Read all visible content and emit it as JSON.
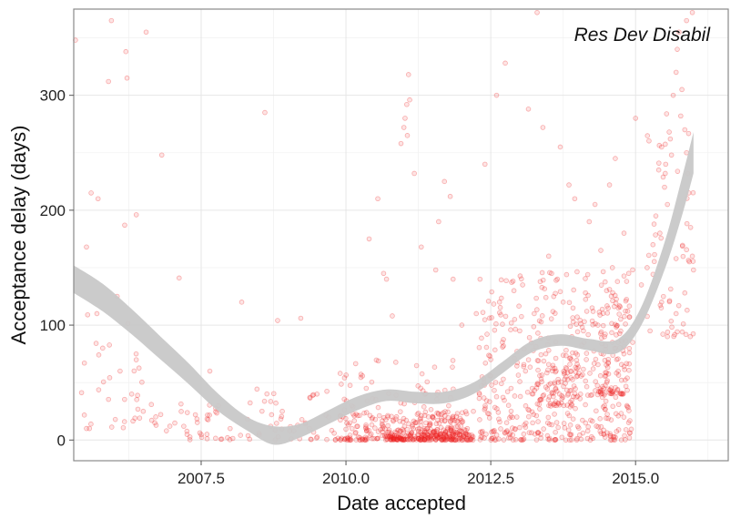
{
  "chart_data": {
    "type": "scatter",
    "title": "Res Dev Disabil",
    "xlabel": "Date accepted",
    "ylabel": "Acceptance delay (days)",
    "xlim": [
      2005.3,
      2016.6
    ],
    "ylim": [
      -18,
      375
    ],
    "x_ticks": [
      2007.5,
      2010.0,
      2012.5,
      2015.0
    ],
    "x_tick_labels": [
      "2007.5",
      "2010.0",
      "2012.5",
      "2015.0"
    ],
    "y_ticks": [
      0,
      100,
      200,
      300
    ],
    "y_tick_labels": [
      "0",
      "100",
      "200",
      "300"
    ],
    "grid": true,
    "point_color": "#ee2222",
    "band_color": "#c8c8c8",
    "points": [
      [
        2005.33,
        348
      ],
      [
        2005.6,
        215
      ],
      [
        2005.72,
        210
      ],
      [
        2005.52,
        168
      ],
      [
        2005.9,
        312
      ],
      [
        2005.95,
        365
      ],
      [
        2006.2,
        338
      ],
      [
        2006.22,
        315
      ],
      [
        2006.55,
        355
      ],
      [
        2006.38,
        196
      ],
      [
        2006.18,
        187
      ],
      [
        2006.82,
        248
      ],
      [
        2007.12,
        141
      ],
      [
        2007.65,
        60
      ],
      [
        2008.6,
        285
      ],
      [
        2008.82,
        104
      ],
      [
        2009.22,
        106
      ],
      [
        2008.2,
        120
      ],
      [
        2006.05,
        125
      ],
      [
        2005.7,
        110
      ],
      [
        2005.8,
        80
      ],
      [
        2006.1,
        60
      ],
      [
        2006.3,
        40
      ],
      [
        2006.5,
        25
      ],
      [
        2006.7,
        15
      ],
      [
        2006.9,
        8
      ],
      [
        2007.2,
        12
      ],
      [
        2007.4,
        22
      ],
      [
        2007.6,
        5
      ],
      [
        2007.8,
        30
      ],
      [
        2008.0,
        10
      ],
      [
        2008.3,
        18
      ],
      [
        2008.5,
        6
      ],
      [
        2008.7,
        12
      ],
      [
        2008.9,
        25
      ],
      [
        2009.1,
        8
      ],
      [
        2009.3,
        14
      ],
      [
        2009.5,
        40
      ],
      [
        2009.7,
        20
      ],
      [
        2009.9,
        58
      ],
      [
        2010.1,
        30
      ],
      [
        2010.2,
        12
      ],
      [
        2010.35,
        45
      ],
      [
        2010.4,
        175
      ],
      [
        2010.55,
        210
      ],
      [
        2010.65,
        145
      ],
      [
        2010.7,
        140
      ],
      [
        2010.8,
        108
      ],
      [
        2010.95,
        258
      ],
      [
        2011.0,
        272
      ],
      [
        2011.02,
        280
      ],
      [
        2011.05,
        292
      ],
      [
        2011.08,
        318
      ],
      [
        2011.1,
        296
      ],
      [
        2011.06,
        265
      ],
      [
        2011.18,
        232
      ],
      [
        2011.3,
        168
      ],
      [
        2011.55,
        148
      ],
      [
        2011.6,
        190
      ],
      [
        2011.7,
        225
      ],
      [
        2011.8,
        212
      ],
      [
        2011.85,
        140
      ],
      [
        2012.0,
        100
      ],
      [
        2012.25,
        110
      ],
      [
        2012.4,
        240
      ],
      [
        2012.6,
        300
      ],
      [
        2012.75,
        328
      ],
      [
        2012.9,
        130
      ],
      [
        2013.15,
        288
      ],
      [
        2013.3,
        372
      ],
      [
        2013.4,
        272
      ],
      [
        2013.55,
        145
      ],
      [
        2013.7,
        255
      ],
      [
        2013.85,
        222
      ],
      [
        2013.95,
        210
      ],
      [
        2014.2,
        190
      ],
      [
        2014.3,
        205
      ],
      [
        2014.4,
        165
      ],
      [
        2014.55,
        222
      ],
      [
        2014.65,
        245
      ],
      [
        2014.8,
        180
      ],
      [
        2015.0,
        280
      ],
      [
        2015.1,
        135
      ],
      [
        2015.2,
        150
      ],
      [
        2015.3,
        170
      ],
      [
        2015.35,
        195
      ],
      [
        2015.4,
        235
      ],
      [
        2015.45,
        255
      ],
      [
        2015.5,
        220
      ],
      [
        2015.55,
        205
      ],
      [
        2015.6,
        262
      ],
      [
        2015.65,
        300
      ],
      [
        2015.7,
        320
      ],
      [
        2015.72,
        340
      ],
      [
        2015.75,
        355
      ],
      [
        2015.8,
        305
      ],
      [
        2015.85,
        270
      ],
      [
        2015.88,
        250
      ],
      [
        2015.9,
        232
      ],
      [
        2015.92,
        215
      ],
      [
        2015.95,
        185
      ],
      [
        2015.98,
        160
      ],
      [
        2016.0,
        148
      ],
      [
        2015.25,
        95
      ],
      [
        2015.45,
        120
      ],
      [
        2015.55,
        90
      ],
      [
        2015.7,
        110
      ],
      [
        2015.85,
        128
      ],
      [
        2015.98,
        372
      ],
      [
        2015.88,
        365
      ],
      [
        2015.78,
        282
      ],
      [
        2015.62,
        248
      ],
      [
        2015.52,
        240
      ],
      [
        2015.42,
        180
      ],
      [
        2012.2,
        25
      ],
      [
        2012.35,
        55
      ],
      [
        2012.5,
        70
      ],
      [
        2012.7,
        85
      ],
      [
        2012.85,
        45
      ],
      [
        2013.0,
        95
      ],
      [
        2013.1,
        60
      ],
      [
        2013.25,
        110
      ],
      [
        2013.45,
        75
      ],
      [
        2013.6,
        50
      ],
      [
        2013.75,
        120
      ],
      [
        2013.9,
        90
      ],
      [
        2014.05,
        40
      ],
      [
        2014.15,
        70
      ],
      [
        2014.35,
        100
      ],
      [
        2014.5,
        130
      ],
      [
        2014.7,
        60
      ],
      [
        2014.85,
        30
      ],
      [
        2014.95,
        85
      ],
      [
        2013.35,
        35
      ],
      [
        2013.65,
        140
      ],
      [
        2014.25,
        115
      ],
      [
        2014.6,
        150
      ],
      [
        2012.95,
        20
      ],
      [
        2013.8,
        55
      ],
      [
        2014.45,
        45
      ],
      [
        2012.65,
        120
      ],
      [
        2013.05,
        135
      ],
      [
        2013.5,
        160
      ],
      [
        2014.1,
        95
      ]
    ],
    "clusters": [
      {
        "x": [
          2009.9,
          2012.1
        ],
        "y": [
          0,
          25
        ],
        "count": 260
      },
      {
        "x": [
          2010.7,
          2012.2
        ],
        "y": [
          0,
          10
        ],
        "count": 160
      },
      {
        "x": [
          2012.3,
          2014.95
        ],
        "y": [
          0,
          150
        ],
        "count": 430
      },
      {
        "x": [
          2013.3,
          2014.0
        ],
        "y": [
          30,
          80
        ],
        "count": 80
      },
      {
        "x": [
          2014.3,
          2014.9
        ],
        "y": [
          40,
          130
        ],
        "count": 80
      },
      {
        "x": [
          2007.2,
          2009.9
        ],
        "y": [
          0,
          45
        ],
        "count": 70
      },
      {
        "x": [
          2005.4,
          2007.2
        ],
        "y": [
          10,
          110
        ],
        "count": 40
      },
      {
        "x": [
          2009.9,
          2012.0
        ],
        "y": [
          15,
          70
        ],
        "count": 70
      },
      {
        "x": [
          2015.2,
          2016.0
        ],
        "y": [
          90,
          300
        ],
        "count": 50
      }
    ],
    "smooth_band": [
      {
        "x": 2005.3,
        "lo": 128,
        "hi": 152
      },
      {
        "x": 2005.8,
        "lo": 112,
        "hi": 136
      },
      {
        "x": 2006.3,
        "lo": 92,
        "hi": 114
      },
      {
        "x": 2006.8,
        "lo": 70,
        "hi": 90
      },
      {
        "x": 2007.3,
        "lo": 48,
        "hi": 66
      },
      {
        "x": 2007.8,
        "lo": 25,
        "hi": 40
      },
      {
        "x": 2008.3,
        "lo": 8,
        "hi": 20
      },
      {
        "x": 2008.75,
        "lo": -4,
        "hi": 12
      },
      {
        "x": 2009.2,
        "lo": 2,
        "hi": 14
      },
      {
        "x": 2009.7,
        "lo": 14,
        "hi": 26
      },
      {
        "x": 2010.2,
        "lo": 26,
        "hi": 38
      },
      {
        "x": 2010.7,
        "lo": 34,
        "hi": 44
      },
      {
        "x": 2011.2,
        "lo": 32,
        "hi": 42
      },
      {
        "x": 2011.7,
        "lo": 32,
        "hi": 42
      },
      {
        "x": 2012.2,
        "lo": 40,
        "hi": 50
      },
      {
        "x": 2012.7,
        "lo": 58,
        "hi": 68
      },
      {
        "x": 2013.2,
        "lo": 76,
        "hi": 86
      },
      {
        "x": 2013.7,
        "lo": 82,
        "hi": 92
      },
      {
        "x": 2014.2,
        "lo": 78,
        "hi": 88
      },
      {
        "x": 2014.7,
        "lo": 76,
        "hi": 88
      },
      {
        "x": 2015.1,
        "lo": 100,
        "hi": 116
      },
      {
        "x": 2015.5,
        "lo": 148,
        "hi": 172
      },
      {
        "x": 2015.8,
        "lo": 195,
        "hi": 228
      },
      {
        "x": 2016.0,
        "lo": 232,
        "hi": 268
      }
    ]
  }
}
